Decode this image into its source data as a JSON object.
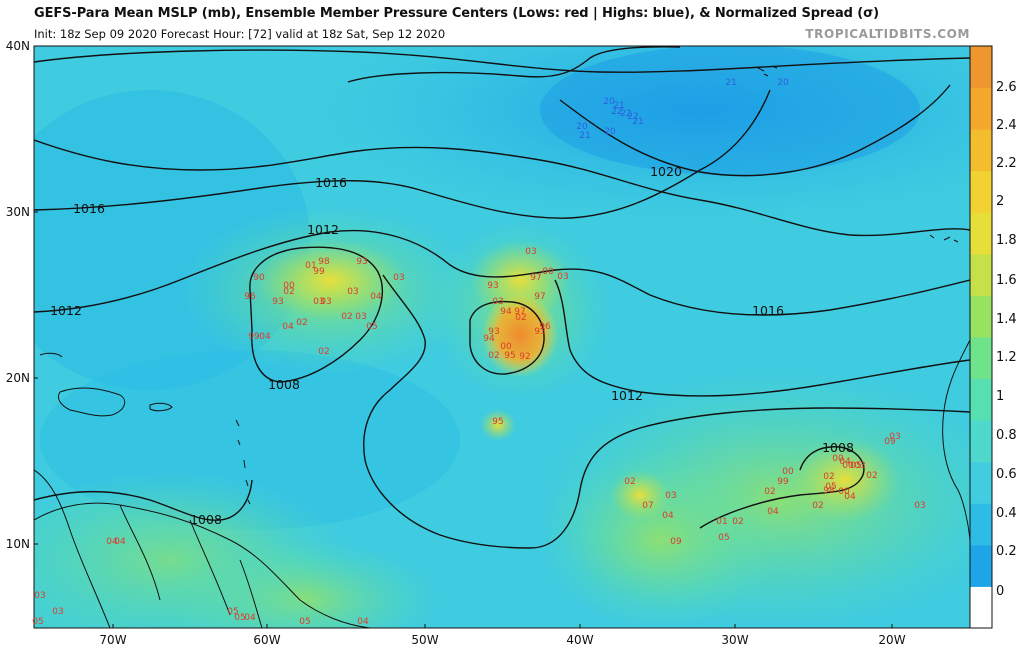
{
  "header": {
    "title": "GEFS-Para Mean MSLP (mb), Ensemble Member Pressure Centers (Lows: red | Highs: blue), & Normalized Spread (σ)",
    "subtitle": "Init: 18z Sep 09 2020   Forecast Hour: [72]   valid at 18z Sat, Sep 12 2020",
    "brand": "TROPICALTIDBITS.COM"
  },
  "axes": {
    "lat_labels": [
      "40N",
      "30N",
      "20N",
      "10N"
    ],
    "lon_labels": [
      "70W",
      "60W",
      "50W",
      "40W",
      "30W",
      "20W"
    ]
  },
  "colorbar": {
    "ticks": [
      "2.6",
      "2.4",
      "2.2",
      "2",
      "1.8",
      "1.6",
      "1.4",
      "1.2",
      "1",
      "0.8",
      "0.6",
      "0.4",
      "0.2",
      "0"
    ],
    "colors": [
      "#ffffff",
      "#1ea5e8",
      "#2cbce6",
      "#41cde0",
      "#4ed9cc",
      "#56dfb0",
      "#6ee38a",
      "#98e262",
      "#c6e04a",
      "#e6df3a",
      "#f2d233",
      "#f4bd2e",
      "#f3a82d",
      "#f0962f"
    ]
  },
  "isobars": {
    "labels": [
      "1016",
      "1016",
      "1020",
      "1012",
      "1012",
      "1016",
      "1008",
      "1012",
      "1008",
      "1008"
    ]
  },
  "highs": {
    "color": "#2f5fe0",
    "labels": [
      "21",
      "20",
      "20",
      "21",
      "22",
      "22",
      "22",
      "21",
      "20",
      "21",
      "20"
    ]
  },
  "lows": {
    "color": "#e03a2a",
    "labels": [
      "98",
      "93",
      "01",
      "99",
      "90",
      "03",
      "96",
      "93",
      "03",
      "04",
      "00",
      "02",
      "03",
      "03",
      "02",
      "03",
      "04",
      "02",
      "05",
      "99",
      "04",
      "02",
      "03",
      "97",
      "00",
      "03",
      "93",
      "97",
      "03",
      "94",
      "97",
      "93",
      "02",
      "96",
      "94",
      "93",
      "00",
      "92",
      "02",
      "95",
      "95",
      "03",
      "09",
      "00",
      "04",
      "05",
      "00",
      "99",
      "02",
      "02",
      "07",
      "03",
      "04",
      "09",
      "01",
      "02",
      "05",
      "04",
      "02",
      "05",
      "98",
      "02",
      "03",
      "04",
      "00",
      "00",
      "03",
      "02",
      "03",
      "03",
      "04",
      "04",
      "05",
      "05",
      "05",
      "04",
      "05",
      "04"
    ]
  }
}
